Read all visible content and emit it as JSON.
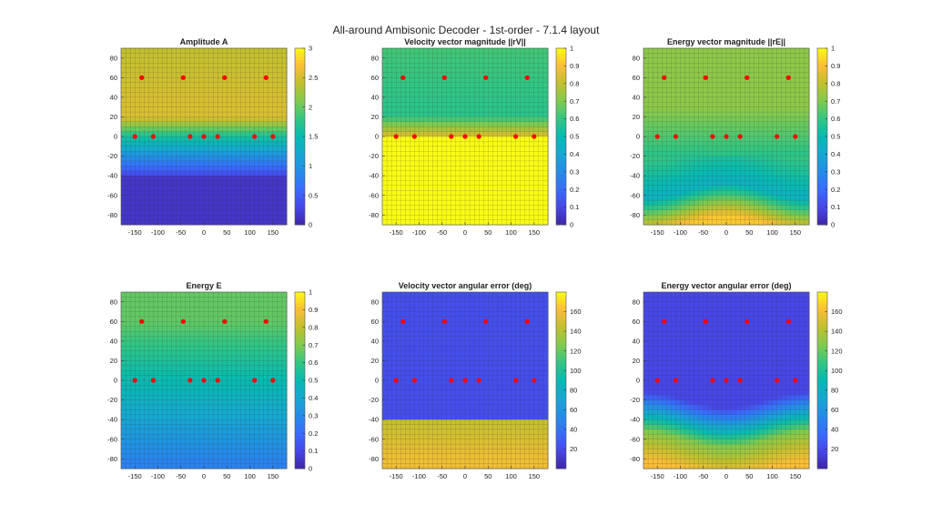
{
  "figure_title": "All-around Ambisonic Decoder - 1st-order - 7.1.4 layout",
  "chart_data": [
    {
      "type": "heatmap",
      "title": "Amplitude A",
      "x_ticks": [
        "-150",
        "-100",
        "-50",
        "0",
        "50",
        "100",
        "150"
      ],
      "y_ticks": [
        "80",
        "60",
        "40",
        "20",
        "0",
        "-20",
        "-40",
        "-60",
        "-80"
      ],
      "xlim": [
        -180,
        180
      ],
      "ylim": [
        -90,
        90
      ],
      "colorbar": {
        "min": 0,
        "max": 3,
        "ticks": [
          "0",
          "0.5",
          "1",
          "1.5",
          "2",
          "2.5",
          "3"
        ]
      },
      "field": {
        "model": "amplitude"
      },
      "speakers": [
        {
          "az": -150,
          "el": 0
        },
        {
          "az": -110,
          "el": 0
        },
        {
          "az": -30,
          "el": 0
        },
        {
          "az": 0,
          "el": 0
        },
        {
          "az": 30,
          "el": 0
        },
        {
          "az": 110,
          "el": 0
        },
        {
          "az": 150,
          "el": 0
        },
        {
          "az": -135,
          "el": 60
        },
        {
          "az": -45,
          "el": 60
        },
        {
          "az": 45,
          "el": 60
        },
        {
          "az": 135,
          "el": 60
        }
      ]
    },
    {
      "type": "heatmap",
      "title": "Velocity vector magnitude ||rV||",
      "x_ticks": [
        "-150",
        "-100",
        "-50",
        "0",
        "50",
        "100",
        "150"
      ],
      "y_ticks": [
        "80",
        "60",
        "40",
        "20",
        "0",
        "-20",
        "-40",
        "-60",
        "-80"
      ],
      "xlim": [
        -180,
        180
      ],
      "ylim": [
        -90,
        90
      ],
      "colorbar": {
        "min": 0,
        "max": 1,
        "ticks": [
          "0",
          "0.1",
          "0.2",
          "0.3",
          "0.4",
          "0.5",
          "0.6",
          "0.7",
          "0.8",
          "0.9",
          "1"
        ]
      },
      "field": {
        "model": "velocity_magnitude"
      },
      "speakers": [
        {
          "az": -150,
          "el": 0
        },
        {
          "az": -110,
          "el": 0
        },
        {
          "az": -30,
          "el": 0
        },
        {
          "az": 0,
          "el": 0
        },
        {
          "az": 30,
          "el": 0
        },
        {
          "az": 110,
          "el": 0
        },
        {
          "az": 150,
          "el": 0
        },
        {
          "az": -135,
          "el": 60
        },
        {
          "az": -45,
          "el": 60
        },
        {
          "az": 45,
          "el": 60
        },
        {
          "az": 135,
          "el": 60
        }
      ]
    },
    {
      "type": "heatmap",
      "title": "Energy vector magnitude ||rE||",
      "x_ticks": [
        "-150",
        "-100",
        "-50",
        "0",
        "50",
        "100",
        "150"
      ],
      "y_ticks": [
        "80",
        "60",
        "40",
        "20",
        "0",
        "-20",
        "-40",
        "-60",
        "-80"
      ],
      "xlim": [
        -180,
        180
      ],
      "ylim": [
        -90,
        90
      ],
      "colorbar": {
        "min": 0,
        "max": 1,
        "ticks": [
          "0",
          "0.1",
          "0.2",
          "0.3",
          "0.4",
          "0.5",
          "0.6",
          "0.7",
          "0.8",
          "0.9",
          "1"
        ]
      },
      "field": {
        "model": "energy_magnitude"
      },
      "speakers": [
        {
          "az": -150,
          "el": 0
        },
        {
          "az": -110,
          "el": 0
        },
        {
          "az": -30,
          "el": 0
        },
        {
          "az": 0,
          "el": 0
        },
        {
          "az": 30,
          "el": 0
        },
        {
          "az": 110,
          "el": 0
        },
        {
          "az": 150,
          "el": 0
        },
        {
          "az": -135,
          "el": 60
        },
        {
          "az": -45,
          "el": 60
        },
        {
          "az": 45,
          "el": 60
        },
        {
          "az": 135,
          "el": 60
        }
      ]
    },
    {
      "type": "heatmap",
      "title": "Energy E",
      "x_ticks": [
        "-150",
        "-100",
        "-50",
        "0",
        "50",
        "100",
        "150"
      ],
      "y_ticks": [
        "80",
        "60",
        "40",
        "20",
        "0",
        "-20",
        "-40",
        "-60",
        "-80"
      ],
      "xlim": [
        -180,
        180
      ],
      "ylim": [
        -90,
        90
      ],
      "colorbar": {
        "min": 0,
        "max": 1,
        "ticks": [
          "0",
          "0.1",
          "0.2",
          "0.3",
          "0.4",
          "0.5",
          "0.6",
          "0.7",
          "0.8",
          "0.9",
          "1"
        ]
      },
      "field": {
        "model": "energy"
      },
      "speakers": [
        {
          "az": -150,
          "el": 0
        },
        {
          "az": -110,
          "el": 0
        },
        {
          "az": -30,
          "el": 0
        },
        {
          "az": 0,
          "el": 0
        },
        {
          "az": 30,
          "el": 0
        },
        {
          "az": 110,
          "el": 0
        },
        {
          "az": 150,
          "el": 0
        },
        {
          "az": -135,
          "el": 60
        },
        {
          "az": -45,
          "el": 60
        },
        {
          "az": 45,
          "el": 60
        },
        {
          "az": 135,
          "el": 60
        }
      ]
    },
    {
      "type": "heatmap",
      "title": "Velocity vector angular error (deg)",
      "x_ticks": [
        "-150",
        "-100",
        "-50",
        "0",
        "50",
        "100",
        "150"
      ],
      "y_ticks": [
        "80",
        "60",
        "40",
        "20",
        "0",
        "-20",
        "-40",
        "-60",
        "-80"
      ],
      "xlim": [
        -180,
        180
      ],
      "ylim": [
        -90,
        90
      ],
      "colorbar": {
        "min": 0,
        "max": 180,
        "ticks": [
          "20",
          "40",
          "60",
          "80",
          "100",
          "120",
          "140",
          "160"
        ]
      },
      "field": {
        "model": "velocity_error"
      },
      "speakers": [
        {
          "az": -150,
          "el": 0
        },
        {
          "az": -110,
          "el": 0
        },
        {
          "az": -30,
          "el": 0
        },
        {
          "az": 0,
          "el": 0
        },
        {
          "az": 30,
          "el": 0
        },
        {
          "az": 110,
          "el": 0
        },
        {
          "az": 150,
          "el": 0
        },
        {
          "az": -135,
          "el": 60
        },
        {
          "az": -45,
          "el": 60
        },
        {
          "az": 45,
          "el": 60
        },
        {
          "az": 135,
          "el": 60
        }
      ]
    },
    {
      "type": "heatmap",
      "title": "Energy vector angular error (deg)",
      "x_ticks": [
        "-150",
        "-100",
        "-50",
        "0",
        "50",
        "100",
        "150"
      ],
      "y_ticks": [
        "80",
        "60",
        "40",
        "20",
        "0",
        "-20",
        "-40",
        "-60",
        "-80"
      ],
      "xlim": [
        -180,
        180
      ],
      "ylim": [
        -90,
        90
      ],
      "colorbar": {
        "min": 0,
        "max": 180,
        "ticks": [
          "20",
          "40",
          "60",
          "80",
          "100",
          "120",
          "140",
          "160"
        ]
      },
      "field": {
        "model": "energy_error"
      },
      "speakers": [
        {
          "az": -150,
          "el": 0
        },
        {
          "az": -110,
          "el": 0
        },
        {
          "az": -30,
          "el": 0
        },
        {
          "az": 0,
          "el": 0
        },
        {
          "az": 30,
          "el": 0
        },
        {
          "az": 110,
          "el": 0
        },
        {
          "az": 150,
          "el": 0
        },
        {
          "az": -135,
          "el": 60
        },
        {
          "az": -45,
          "el": 60
        },
        {
          "az": 45,
          "el": 60
        },
        {
          "az": 135,
          "el": 60
        }
      ]
    }
  ],
  "colors": {
    "colormap": "parula",
    "speaker_marker": "#ff0000",
    "grid_line": "#333333"
  }
}
